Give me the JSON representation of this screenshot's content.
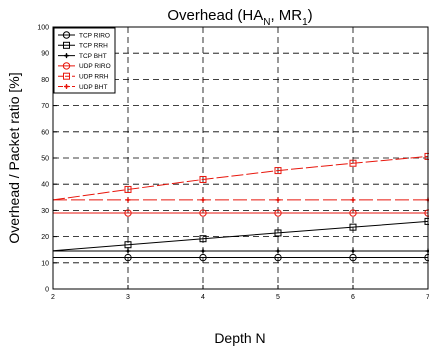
{
  "chart_data": {
    "type": "line",
    "title_parts": [
      "Overhead (HA",
      "N",
      ", MR",
      "1",
      ")"
    ],
    "xlabel": "Depth N",
    "ylabel": "Overhead / Packet ratio  [%]",
    "xlim": [
      2,
      7
    ],
    "ylim": [
      0,
      100
    ],
    "xticks": [
      "2",
      "3",
      "4",
      "5",
      "6",
      "7"
    ],
    "yticks": [
      "0",
      "10",
      "20",
      "30",
      "40",
      "50",
      "60",
      "70",
      "80",
      "90",
      "100"
    ],
    "grid": true,
    "legend_position": "top-left",
    "x": [
      2,
      3,
      4,
      5,
      6,
      7
    ],
    "series": [
      {
        "name": "TCP RIRO",
        "color": "#000000",
        "marker": "circle",
        "dash": "",
        "values": [
          12,
          12,
          12,
          12,
          12,
          12
        ],
        "markers_from": 1
      },
      {
        "name": "TCP RRH",
        "color": "#000000",
        "marker": "square",
        "dash": "",
        "values": [
          14.6,
          16.9,
          19.2,
          21.4,
          23.6,
          25.8
        ],
        "markers_from": 1
      },
      {
        "name": "TCP BHT",
        "color": "#000000",
        "marker": "star",
        "dash": "",
        "values": [
          14.5,
          14.5,
          14.5,
          14.5,
          14.5,
          14.5
        ],
        "markers_from": 1
      },
      {
        "name": "UDP RIRO",
        "color": "#e8160c",
        "marker": "circle",
        "dash": "",
        "values": [
          29,
          29,
          29,
          29,
          29,
          29
        ],
        "markers_from": 1
      },
      {
        "name": "UDP RRH",
        "color": "#e8160c",
        "marker": "square",
        "dash": "12,3",
        "values": [
          34,
          38,
          41.8,
          45.2,
          48,
          50.6
        ],
        "markers_from": 1
      },
      {
        "name": "UDP BHT",
        "color": "#e8160c",
        "marker": "star",
        "dash": "14,4",
        "values": [
          34,
          34,
          34,
          34,
          34,
          34
        ],
        "markers_from": 1
      }
    ]
  }
}
